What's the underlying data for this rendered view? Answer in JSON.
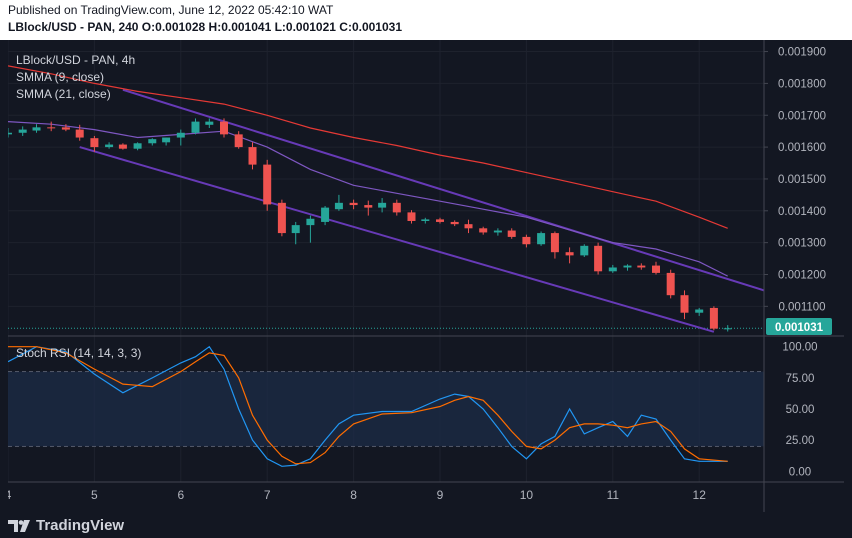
{
  "header": {
    "published": "Published on TradingView.com, June 12, 2022 05:42:10 WAT",
    "ohlc": "LBlock/USD - PAN, 240  O:0.001028 H:0.001041 L:0.001021 C:0.001031"
  },
  "legend": {
    "symbol": "LBlock/USD - PAN, 4h",
    "smma9": "SMMA (9, close)",
    "smma21": "SMMA (21, close)",
    "rsi": "Stoch RSI (14, 14, 3, 3)"
  },
  "price_badge": "0.001031",
  "footer": {
    "logo_text": "TradingView"
  },
  "colors": {
    "up": "#26a69a",
    "down": "#ef5350",
    "smma9": "#7e57c2",
    "smma21": "#e53935",
    "channel": "#673ab7",
    "k": "#2196f3",
    "d": "#ff6d00",
    "badge": "#26a69a"
  },
  "chart_data": [
    {
      "type": "candlestick",
      "title": "LBlock/USD - PAN, 4h",
      "x_ticks": [
        "4",
        "5",
        "6",
        "7",
        "8",
        "9",
        "10",
        "11",
        "12"
      ],
      "y_ticks": [
        "0.001900",
        "0.001800",
        "0.001700",
        "0.001600",
        "0.001500",
        "0.001400",
        "0.001300",
        "0.001200",
        "0.001100"
      ],
      "ylim": [
        0.00101,
        0.00193
      ],
      "xlim": [
        4.0,
        12.75
      ],
      "candles": [
        {
          "t": 4.0,
          "o": 0.00164,
          "h": 0.00166,
          "l": 0.00163,
          "c": 0.001645
        },
        {
          "t": 4.17,
          "o": 0.001645,
          "h": 0.001665,
          "l": 0.001635,
          "c": 0.001655
        },
        {
          "t": 4.33,
          "o": 0.001652,
          "h": 0.001672,
          "l": 0.001645,
          "c": 0.001662
        },
        {
          "t": 4.5,
          "o": 0.001662,
          "h": 0.00168,
          "l": 0.00165,
          "c": 0.00166
        },
        {
          "t": 4.67,
          "o": 0.001662,
          "h": 0.001672,
          "l": 0.00165,
          "c": 0.001655
        },
        {
          "t": 4.83,
          "o": 0.001655,
          "h": 0.00167,
          "l": 0.00162,
          "c": 0.00163
        },
        {
          "t": 5.0,
          "o": 0.001628,
          "h": 0.001635,
          "l": 0.001585,
          "c": 0.0016
        },
        {
          "t": 5.17,
          "o": 0.0016,
          "h": 0.001615,
          "l": 0.001595,
          "c": 0.001608
        },
        {
          "t": 5.33,
          "o": 0.001608,
          "h": 0.001612,
          "l": 0.001592,
          "c": 0.001595
        },
        {
          "t": 5.5,
          "o": 0.001595,
          "h": 0.001615,
          "l": 0.00159,
          "c": 0.001612
        },
        {
          "t": 5.67,
          "o": 0.001612,
          "h": 0.001628,
          "l": 0.001605,
          "c": 0.001625
        },
        {
          "t": 5.83,
          "o": 0.001615,
          "h": 0.00163,
          "l": 0.001605,
          "c": 0.00163
        },
        {
          "t": 6.0,
          "o": 0.00163,
          "h": 0.001655,
          "l": 0.001605,
          "c": 0.001645
        },
        {
          "t": 6.17,
          "o": 0.001645,
          "h": 0.00169,
          "l": 0.00164,
          "c": 0.00168
        },
        {
          "t": 6.33,
          "o": 0.00167,
          "h": 0.00169,
          "l": 0.00166,
          "c": 0.00168
        },
        {
          "t": 6.5,
          "o": 0.00168,
          "h": 0.00169,
          "l": 0.00163,
          "c": 0.00164
        },
        {
          "t": 6.67,
          "o": 0.00164,
          "h": 0.00165,
          "l": 0.001595,
          "c": 0.0016
        },
        {
          "t": 6.83,
          "o": 0.0016,
          "h": 0.001615,
          "l": 0.00153,
          "c": 0.001545
        },
        {
          "t": 7.0,
          "o": 0.001545,
          "h": 0.00156,
          "l": 0.0014,
          "c": 0.00142
        },
        {
          "t": 7.17,
          "o": 0.001425,
          "h": 0.001435,
          "l": 0.00132,
          "c": 0.00133
        },
        {
          "t": 7.33,
          "o": 0.00133,
          "h": 0.001365,
          "l": 0.001295,
          "c": 0.001355
        },
        {
          "t": 7.5,
          "o": 0.001355,
          "h": 0.001385,
          "l": 0.0013,
          "c": 0.001375
        },
        {
          "t": 7.67,
          "o": 0.001365,
          "h": 0.001415,
          "l": 0.001355,
          "c": 0.00141
        },
        {
          "t": 7.83,
          "o": 0.001405,
          "h": 0.00145,
          "l": 0.0014,
          "c": 0.001425
        },
        {
          "t": 8.0,
          "o": 0.001425,
          "h": 0.001435,
          "l": 0.001405,
          "c": 0.001418
        },
        {
          "t": 8.17,
          "o": 0.001418,
          "h": 0.001432,
          "l": 0.001385,
          "c": 0.00141
        },
        {
          "t": 8.33,
          "o": 0.00141,
          "h": 0.00144,
          "l": 0.001395,
          "c": 0.001425
        },
        {
          "t": 8.5,
          "o": 0.001425,
          "h": 0.001435,
          "l": 0.001385,
          "c": 0.001395
        },
        {
          "t": 8.67,
          "o": 0.001395,
          "h": 0.001402,
          "l": 0.00136,
          "c": 0.001368
        },
        {
          "t": 8.83,
          "o": 0.001368,
          "h": 0.001378,
          "l": 0.00136,
          "c": 0.001373
        },
        {
          "t": 9.0,
          "o": 0.001373,
          "h": 0.001378,
          "l": 0.00136,
          "c": 0.001365
        },
        {
          "t": 9.17,
          "o": 0.001365,
          "h": 0.00137,
          "l": 0.001352,
          "c": 0.001358
        },
        {
          "t": 9.33,
          "o": 0.001358,
          "h": 0.001372,
          "l": 0.00133,
          "c": 0.001345
        },
        {
          "t": 9.5,
          "o": 0.001345,
          "h": 0.00135,
          "l": 0.001325,
          "c": 0.001332
        },
        {
          "t": 9.67,
          "o": 0.001332,
          "h": 0.001345,
          "l": 0.001322,
          "c": 0.001338
        },
        {
          "t": 9.83,
          "o": 0.001338,
          "h": 0.001345,
          "l": 0.001312,
          "c": 0.001318
        },
        {
          "t": 10.0,
          "o": 0.001318,
          "h": 0.001325,
          "l": 0.001285,
          "c": 0.001295
        },
        {
          "t": 10.17,
          "o": 0.001295,
          "h": 0.001335,
          "l": 0.00129,
          "c": 0.00133
        },
        {
          "t": 10.33,
          "o": 0.00133,
          "h": 0.001335,
          "l": 0.00125,
          "c": 0.00127
        },
        {
          "t": 10.5,
          "o": 0.00127,
          "h": 0.001285,
          "l": 0.001235,
          "c": 0.00126
        },
        {
          "t": 10.67,
          "o": 0.00126,
          "h": 0.001295,
          "l": 0.001255,
          "c": 0.00129
        },
        {
          "t": 10.83,
          "o": 0.00129,
          "h": 0.0013,
          "l": 0.0012,
          "c": 0.00121
        },
        {
          "t": 11.0,
          "o": 0.00121,
          "h": 0.00123,
          "l": 0.001205,
          "c": 0.001222
        },
        {
          "t": 11.17,
          "o": 0.001222,
          "h": 0.001232,
          "l": 0.001212,
          "c": 0.001228
        },
        {
          "t": 11.33,
          "o": 0.001228,
          "h": 0.001235,
          "l": 0.001215,
          "c": 0.001222
        },
        {
          "t": 11.5,
          "o": 0.001228,
          "h": 0.00124,
          "l": 0.0012,
          "c": 0.001205
        },
        {
          "t": 11.67,
          "o": 0.001205,
          "h": 0.001215,
          "l": 0.001125,
          "c": 0.001135
        },
        {
          "t": 11.83,
          "o": 0.001135,
          "h": 0.00115,
          "l": 0.00106,
          "c": 0.00108
        },
        {
          "t": 12.0,
          "o": 0.00108,
          "h": 0.001095,
          "l": 0.00107,
          "c": 0.00109
        },
        {
          "t": 12.17,
          "o": 0.001095,
          "h": 0.0011,
          "l": 0.001025,
          "c": 0.00103
        },
        {
          "t": 12.33,
          "o": 0.001028,
          "h": 0.001041,
          "l": 0.001021,
          "c": 0.001031
        }
      ],
      "series": [
        {
          "name": "SMMA (9, close)",
          "points": [
            [
              4.0,
              0.00168
            ],
            [
              4.5,
              0.001672
            ],
            [
              5.0,
              0.001655
            ],
            [
              5.5,
              0.00163
            ],
            [
              6.0,
              0.00164
            ],
            [
              6.5,
              0.00165
            ],
            [
              7.0,
              0.0016
            ],
            [
              7.5,
              0.00153
            ],
            [
              8.0,
              0.00148
            ],
            [
              8.5,
              0.001455
            ],
            [
              9.0,
              0.00143
            ],
            [
              9.5,
              0.001405
            ],
            [
              10.0,
              0.00138
            ],
            [
              10.5,
              0.00134
            ],
            [
              11.0,
              0.0013
            ],
            [
              11.5,
              0.00128
            ],
            [
              12.0,
              0.00124
            ],
            [
              12.33,
              0.001195
            ]
          ]
        },
        {
          "name": "SMMA (21, close)",
          "points": [
            [
              4.0,
              0.001855
            ],
            [
              4.5,
              0.00183
            ],
            [
              5.0,
              0.0018
            ],
            [
              5.5,
              0.001775
            ],
            [
              6.0,
              0.001755
            ],
            [
              6.5,
              0.001735
            ],
            [
              7.0,
              0.0017
            ],
            [
              7.5,
              0.00166
            ],
            [
              8.0,
              0.00163
            ],
            [
              8.5,
              0.001605
            ],
            [
              9.0,
              0.001575
            ],
            [
              9.5,
              0.00155
            ],
            [
              10.0,
              0.00152
            ],
            [
              10.5,
              0.00149
            ],
            [
              11.0,
              0.00146
            ],
            [
              11.5,
              0.00143
            ],
            [
              12.0,
              0.00138
            ],
            [
              12.33,
              0.001345
            ]
          ]
        }
      ],
      "channel_lines": [
        {
          "from": [
            5.33,
            0.00178
          ],
          "to": [
            12.75,
            0.00115
          ]
        },
        {
          "from": [
            4.83,
            0.0016
          ],
          "to": [
            12.17,
            0.00102
          ]
        }
      ],
      "last_price": 0.001031
    },
    {
      "type": "line",
      "title": "Stoch RSI (14, 14, 3, 3)",
      "y_ticks": [
        "100.00",
        "75.00",
        "50.00",
        "25.00",
        "0.00"
      ],
      "ylim": [
        -7,
        107
      ],
      "xlim": [
        4.0,
        12.75
      ],
      "bands": [
        20,
        80
      ],
      "series": [
        {
          "name": "K",
          "points": [
            [
              4.0,
              88
            ],
            [
              4.33,
              100
            ],
            [
              4.67,
              96
            ],
            [
              5.0,
              78
            ],
            [
              5.33,
              63
            ],
            [
              5.67,
              75
            ],
            [
              6.0,
              87
            ],
            [
              6.17,
              92
            ],
            [
              6.33,
              100
            ],
            [
              6.5,
              82
            ],
            [
              6.67,
              50
            ],
            [
              6.83,
              25
            ],
            [
              7.0,
              10
            ],
            [
              7.17,
              4
            ],
            [
              7.33,
              5
            ],
            [
              7.5,
              10
            ],
            [
              7.67,
              25
            ],
            [
              7.83,
              38
            ],
            [
              8.0,
              45
            ],
            [
              8.33,
              48
            ],
            [
              8.67,
              48
            ],
            [
              9.0,
              58
            ],
            [
              9.17,
              62
            ],
            [
              9.33,
              60
            ],
            [
              9.5,
              50
            ],
            [
              9.67,
              35
            ],
            [
              9.83,
              20
            ],
            [
              10.0,
              10
            ],
            [
              10.17,
              22
            ],
            [
              10.33,
              28
            ],
            [
              10.5,
              50
            ],
            [
              10.67,
              30
            ],
            [
              10.83,
              35
            ],
            [
              11.0,
              40
            ],
            [
              11.17,
              28
            ],
            [
              11.33,
              45
            ],
            [
              11.5,
              42
            ],
            [
              11.67,
              25
            ],
            [
              11.83,
              10
            ],
            [
              12.0,
              8
            ],
            [
              12.33,
              8
            ]
          ]
        },
        {
          "name": "D",
          "points": [
            [
              4.0,
              100
            ],
            [
              4.33,
              100
            ],
            [
              4.67,
              95
            ],
            [
              5.0,
              82
            ],
            [
              5.33,
              70
            ],
            [
              5.67,
              68
            ],
            [
              6.0,
              80
            ],
            [
              6.17,
              88
            ],
            [
              6.33,
              95
            ],
            [
              6.5,
              93
            ],
            [
              6.67,
              75
            ],
            [
              6.83,
              45
            ],
            [
              7.0,
              25
            ],
            [
              7.17,
              12
            ],
            [
              7.33,
              6
            ],
            [
              7.5,
              7
            ],
            [
              7.67,
              15
            ],
            [
              7.83,
              28
            ],
            [
              8.0,
              38
            ],
            [
              8.33,
              46
            ],
            [
              8.67,
              47
            ],
            [
              9.0,
              52
            ],
            [
              9.17,
              57
            ],
            [
              9.33,
              60
            ],
            [
              9.5,
              57
            ],
            [
              9.67,
              45
            ],
            [
              9.83,
              32
            ],
            [
              10.0,
              20
            ],
            [
              10.17,
              18
            ],
            [
              10.33,
              25
            ],
            [
              10.5,
              35
            ],
            [
              10.67,
              38
            ],
            [
              10.83,
              38
            ],
            [
              11.0,
              37
            ],
            [
              11.17,
              35
            ],
            [
              11.33,
              38
            ],
            [
              11.5,
              40
            ],
            [
              11.67,
              32
            ],
            [
              11.83,
              18
            ],
            [
              12.0,
              10
            ],
            [
              12.33,
              8
            ]
          ]
        }
      ]
    }
  ]
}
